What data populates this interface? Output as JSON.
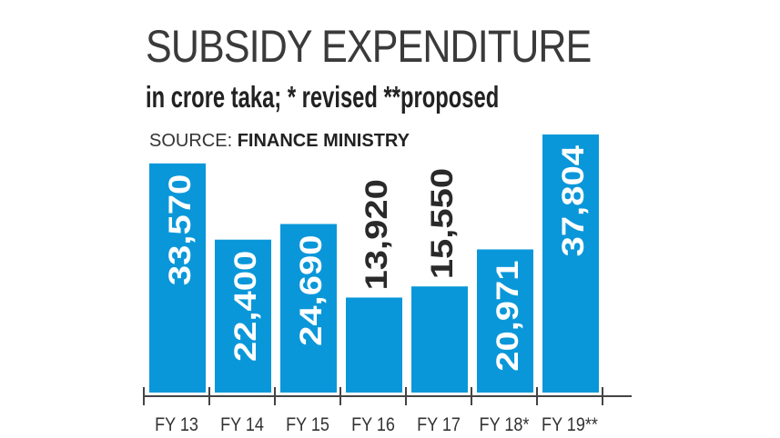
{
  "chart_data": {
    "type": "bar",
    "title": "SUBSIDY EXPENDITURE",
    "subtitle": "in crore taka; * revised **proposed",
    "source_label": "SOURCE:",
    "source": "FINANCE MINISTRY",
    "categories": [
      "FY 13",
      "FY 14",
      "FY 15",
      "FY 16",
      "FY 17",
      "FY 18*",
      "FY 19**"
    ],
    "values": [
      33570,
      22400,
      24690,
      13920,
      15550,
      20971,
      37804
    ],
    "value_labels": [
      "33,570",
      "22,400",
      "24,690",
      "13,920",
      "15,550",
      "20,971",
      "37,804"
    ],
    "label_inside": [
      true,
      true,
      true,
      false,
      false,
      true,
      true
    ],
    "bar_color": "#0a97d9",
    "ylim": [
      0,
      38000
    ],
    "grid": false
  }
}
